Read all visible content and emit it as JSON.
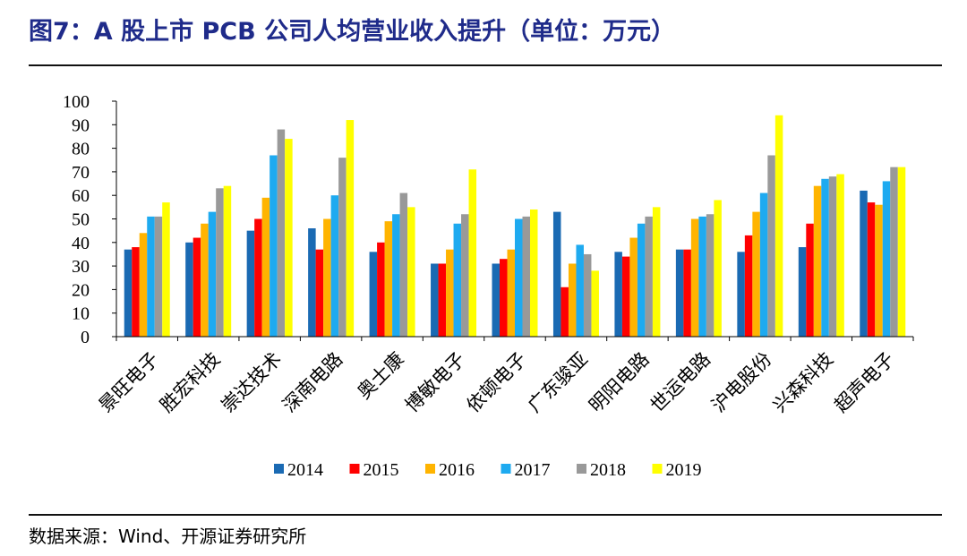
{
  "title": "图7：A 股上市 PCB 公司人均营业收入提升（单位：万元）",
  "source": "数据来源：Wind、开源证券研究所",
  "colors": {
    "title": "#1f2b8a",
    "series": [
      "#1a6ab3",
      "#ff0000",
      "#ffb400",
      "#1eaaf0",
      "#999999",
      "#ffff00"
    ]
  },
  "chart_data": {
    "type": "bar",
    "title": "",
    "xlabel": "",
    "ylabel": "",
    "ylim": [
      0,
      100
    ],
    "yticks": [
      0,
      10,
      20,
      30,
      40,
      50,
      60,
      70,
      80,
      90,
      100
    ],
    "grid": false,
    "legend": "bottom",
    "categories": [
      "景旺电子",
      "胜宏科技",
      "崇达技术",
      "深南电路",
      "奥士康",
      "博敏电子",
      "依顿电子",
      "广东骏亚",
      "明阳电路",
      "世运电路",
      "沪电股份",
      "兴森科技",
      "超声电子"
    ],
    "series": [
      {
        "name": "2014",
        "values": [
          37,
          40,
          45,
          46,
          36,
          31,
          31,
          53,
          36,
          37,
          36,
          38,
          62
        ]
      },
      {
        "name": "2015",
        "values": [
          38,
          42,
          50,
          37,
          40,
          31,
          33,
          21,
          34,
          37,
          43,
          48,
          57
        ]
      },
      {
        "name": "2016",
        "values": [
          44,
          48,
          59,
          50,
          49,
          37,
          37,
          31,
          42,
          50,
          53,
          64,
          56
        ]
      },
      {
        "name": "2017",
        "values": [
          51,
          53,
          77,
          60,
          52,
          48,
          50,
          39,
          48,
          51,
          61,
          67,
          66
        ]
      },
      {
        "name": "2018",
        "values": [
          51,
          63,
          88,
          76,
          61,
          52,
          51,
          35,
          51,
          52,
          77,
          68,
          72
        ]
      },
      {
        "name": "2019",
        "values": [
          57,
          64,
          84,
          92,
          55,
          71,
          54,
          28,
          55,
          58,
          94,
          69,
          72
        ]
      }
    ]
  }
}
